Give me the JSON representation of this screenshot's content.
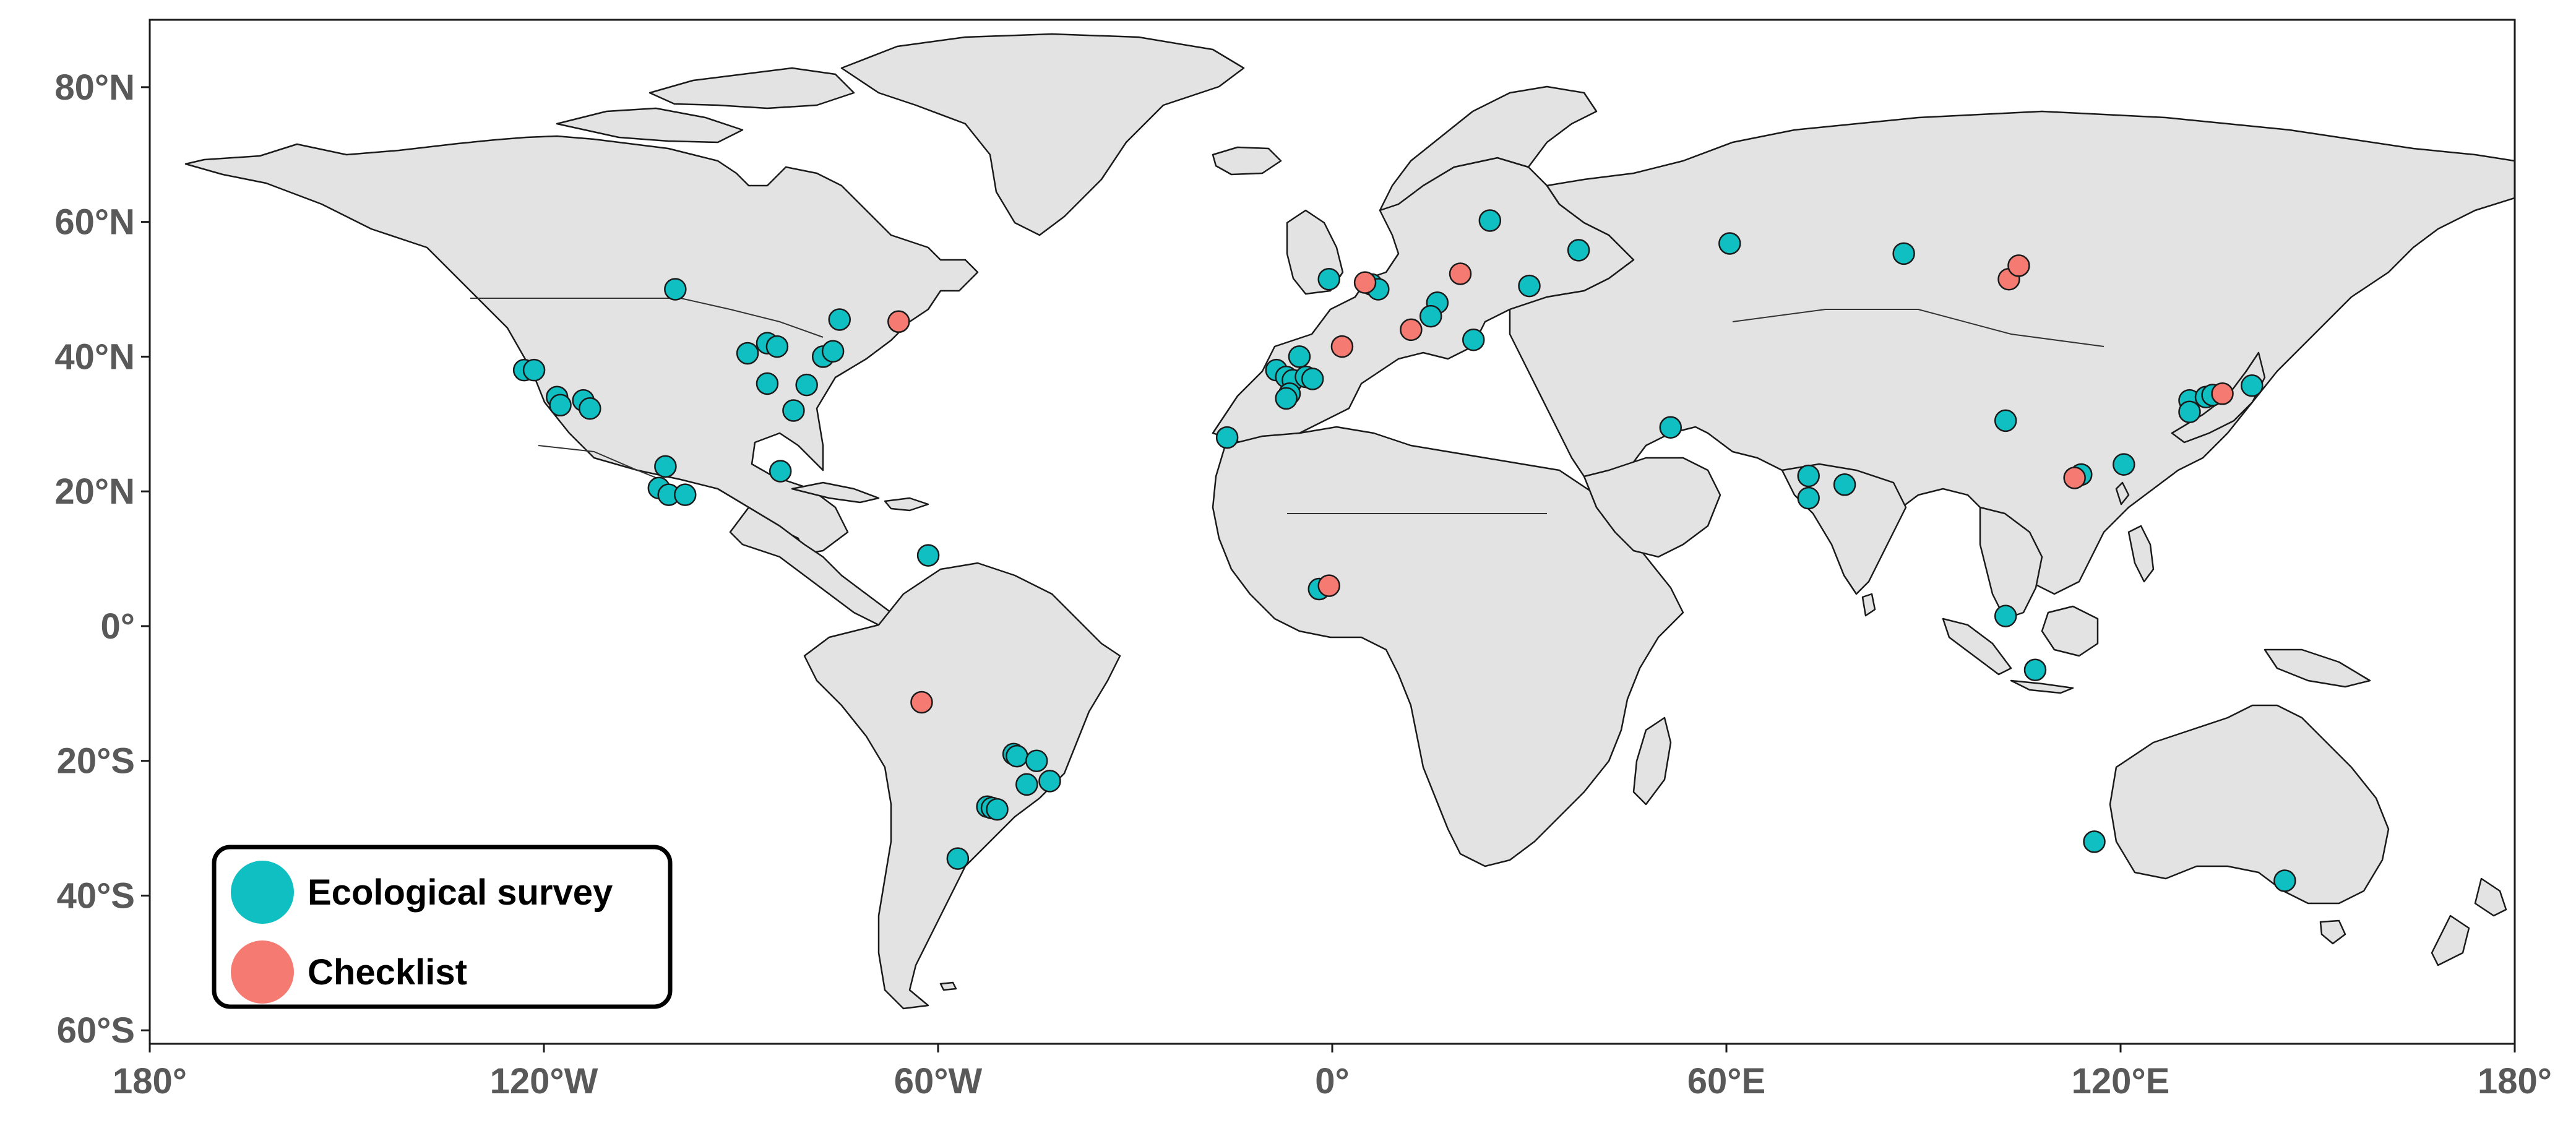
{
  "map": {
    "projection": "equirectangular",
    "lon_range": [
      -180,
      180
    ],
    "lat_range": [
      -62,
      90
    ],
    "x_ticks": [
      {
        "lon": -180,
        "label": "180°"
      },
      {
        "lon": -120,
        "label": "120°W"
      },
      {
        "lon": -60,
        "label": "60°W"
      },
      {
        "lon": 0,
        "label": "0°"
      },
      {
        "lon": 60,
        "label": "60°E"
      },
      {
        "lon": 120,
        "label": "120°E"
      },
      {
        "lon": 180,
        "label": "180°"
      }
    ],
    "y_ticks": [
      {
        "lat": 80,
        "label": "80°N"
      },
      {
        "lat": 60,
        "label": "60°N"
      },
      {
        "lat": 40,
        "label": "40°N"
      },
      {
        "lat": 20,
        "label": "20°N"
      },
      {
        "lat": 0,
        "label": "0°"
      },
      {
        "lat": -20,
        "label": "20°S"
      },
      {
        "lat": -40,
        "label": "40°S"
      },
      {
        "lat": -60,
        "label": "60°S"
      }
    ],
    "land_color": "#e3e3e3",
    "outline_color": "#1a1a1a"
  },
  "legend": {
    "placement": "bottom-left",
    "items": [
      {
        "key": "survey",
        "label": "Ecological survey",
        "color": "#10bfc2"
      },
      {
        "key": "checklist",
        "label": "Checklist",
        "color": "#f47a72"
      }
    ]
  },
  "sites": [
    {
      "type": "survey",
      "lon": -100,
      "lat": 50
    },
    {
      "type": "survey",
      "lon": -123,
      "lat": 38
    },
    {
      "type": "survey",
      "lon": -121.5,
      "lat": 38
    },
    {
      "type": "survey",
      "lon": -118,
      "lat": 34
    },
    {
      "type": "survey",
      "lon": -117.5,
      "lat": 32.8
    },
    {
      "type": "survey",
      "lon": -114,
      "lat": 33.5
    },
    {
      "type": "survey",
      "lon": -113,
      "lat": 32.3
    },
    {
      "type": "survey",
      "lon": -89,
      "lat": 40.5
    },
    {
      "type": "survey",
      "lon": -86,
      "lat": 42
    },
    {
      "type": "survey",
      "lon": -84.5,
      "lat": 41.5
    },
    {
      "type": "survey",
      "lon": -86,
      "lat": 36
    },
    {
      "type": "survey",
      "lon": -82,
      "lat": 32
    },
    {
      "type": "survey",
      "lon": -80,
      "lat": 35.8
    },
    {
      "type": "survey",
      "lon": -77.5,
      "lat": 40
    },
    {
      "type": "survey",
      "lon": -76,
      "lat": 40.8
    },
    {
      "type": "survey",
      "lon": -75,
      "lat": 45.5
    },
    {
      "type": "survey",
      "lon": -101.5,
      "lat": 23.7
    },
    {
      "type": "survey",
      "lon": -102.5,
      "lat": 20.5
    },
    {
      "type": "survey",
      "lon": -101,
      "lat": 19.5
    },
    {
      "type": "survey",
      "lon": -98.5,
      "lat": 19.5
    },
    {
      "type": "survey",
      "lon": -84,
      "lat": 23
    },
    {
      "type": "survey",
      "lon": -61.5,
      "lat": 10.5
    },
    {
      "type": "survey",
      "lon": -48.5,
      "lat": -19
    },
    {
      "type": "survey",
      "lon": -48,
      "lat": -19.3
    },
    {
      "type": "survey",
      "lon": -45,
      "lat": -20
    },
    {
      "type": "survey",
      "lon": -43,
      "lat": -23
    },
    {
      "type": "survey",
      "lon": -46.5,
      "lat": -23.5
    },
    {
      "type": "survey",
      "lon": -52.5,
      "lat": -26.8
    },
    {
      "type": "survey",
      "lon": -51.8,
      "lat": -27
    },
    {
      "type": "survey",
      "lon": -51,
      "lat": -27.2
    },
    {
      "type": "survey",
      "lon": -57,
      "lat": -34.5
    },
    {
      "type": "survey",
      "lon": -16,
      "lat": 28
    },
    {
      "type": "survey",
      "lon": -8.5,
      "lat": 38
    },
    {
      "type": "survey",
      "lon": -7,
      "lat": 37
    },
    {
      "type": "survey",
      "lon": -6,
      "lat": 36.5
    },
    {
      "type": "survey",
      "lon": -5,
      "lat": 40
    },
    {
      "type": "survey",
      "lon": -4,
      "lat": 37
    },
    {
      "type": "survey",
      "lon": -3,
      "lat": 36.7
    },
    {
      "type": "survey",
      "lon": -6.5,
      "lat": 34.5
    },
    {
      "type": "survey",
      "lon": -7,
      "lat": 33.8
    },
    {
      "type": "survey",
      "lon": -0.5,
      "lat": 51.5
    },
    {
      "type": "survey",
      "lon": 6,
      "lat": 50.7
    },
    {
      "type": "survey",
      "lon": 7,
      "lat": 50
    },
    {
      "type": "survey",
      "lon": 16,
      "lat": 48
    },
    {
      "type": "survey",
      "lon": 15,
      "lat": 46
    },
    {
      "type": "survey",
      "lon": 21.5,
      "lat": 42.5
    },
    {
      "type": "survey",
      "lon": 24,
      "lat": 60.2
    },
    {
      "type": "survey",
      "lon": 30,
      "lat": 50.5
    },
    {
      "type": "survey",
      "lon": 37.5,
      "lat": 55.8
    },
    {
      "type": "survey",
      "lon": 60.5,
      "lat": 56.8
    },
    {
      "type": "survey",
      "lon": 87,
      "lat": 55.3
    },
    {
      "type": "survey",
      "lon": 51.5,
      "lat": 29.5
    },
    {
      "type": "survey",
      "lon": 72.5,
      "lat": 22.3
    },
    {
      "type": "survey",
      "lon": 72.5,
      "lat": 19
    },
    {
      "type": "survey",
      "lon": 78,
      "lat": 21
    },
    {
      "type": "survey",
      "lon": 102.5,
      "lat": 30.5
    },
    {
      "type": "survey",
      "lon": 114,
      "lat": 22.5
    },
    {
      "type": "survey",
      "lon": 120.5,
      "lat": 24
    },
    {
      "type": "survey",
      "lon": 102.5,
      "lat": 1.5
    },
    {
      "type": "survey",
      "lon": 107,
      "lat": -6.5
    },
    {
      "type": "survey",
      "lon": 130.5,
      "lat": 33.5
    },
    {
      "type": "survey",
      "lon": 130.5,
      "lat": 31.8
    },
    {
      "type": "survey",
      "lon": 133,
      "lat": 34
    },
    {
      "type": "survey",
      "lon": 134,
      "lat": 34.3
    },
    {
      "type": "survey",
      "lon": 140,
      "lat": 35.7
    },
    {
      "type": "survey",
      "lon": 116,
      "lat": -32
    },
    {
      "type": "survey",
      "lon": 145,
      "lat": -37.8
    },
    {
      "type": "survey",
      "lon": -2,
      "lat": 5.5
    },
    {
      "type": "checklist",
      "lon": -66,
      "lat": 45.2
    },
    {
      "type": "checklist",
      "lon": -62.5,
      "lat": -11.3
    },
    {
      "type": "checklist",
      "lon": 1.5,
      "lat": 41.5
    },
    {
      "type": "checklist",
      "lon": 5,
      "lat": 51
    },
    {
      "type": "checklist",
      "lon": 12,
      "lat": 44
    },
    {
      "type": "checklist",
      "lon": 19.5,
      "lat": 52.3
    },
    {
      "type": "checklist",
      "lon": -0.5,
      "lat": 6
    },
    {
      "type": "checklist",
      "lon": 103,
      "lat": 51.5
    },
    {
      "type": "checklist",
      "lon": 104.5,
      "lat": 53.5
    },
    {
      "type": "checklist",
      "lon": 113,
      "lat": 22
    },
    {
      "type": "checklist",
      "lon": 135.5,
      "lat": 34.5
    }
  ]
}
